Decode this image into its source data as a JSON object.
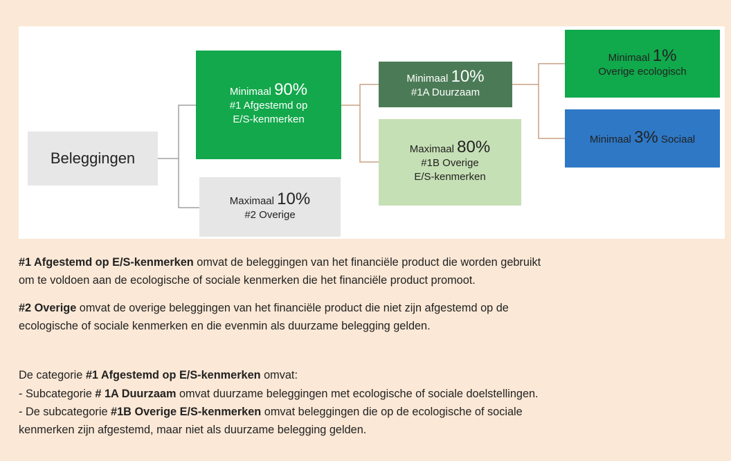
{
  "nodes": [
    {
      "label": "Beleggingen"
    },
    {
      "prefix": "Minimaal",
      "value": "90%",
      "lines": [
        "#1 Afgestemd op",
        "E/S-kenmerken"
      ]
    },
    {
      "prefix": "Maximaal",
      "value": "10%",
      "lines": [
        "#2 Overige"
      ]
    },
    {
      "prefix": "Minimaal",
      "value": "10%",
      "lines": [
        "#1A Duurzaam"
      ]
    },
    {
      "prefix": "Maximaal",
      "value": "80%",
      "lines": [
        "#1B Overige",
        "E/S-kenmerken"
      ]
    },
    {
      "prefix": "Minimaal",
      "value": "1%",
      "lines": [
        "Overige ecologisch"
      ]
    },
    {
      "prefix": "Minimaal",
      "value": "3%",
      "suffix": "Sociaal"
    }
  ],
  "paragraphs": [
    [
      [
        {
          "b": "#1 Afgestemd op E/S-kenmerken"
        },
        {
          "t": " omvat de beleggingen van het financiële product die worden gebruikt"
        }
      ],
      [
        {
          "t": "om te voldoen aan de ecologische of sociale kenmerken die het financiële product promoot."
        }
      ]
    ],
    [
      [
        {
          "b": "#2 Overige"
        },
        {
          "t": " omvat de overige beleggingen van het financiële product die niet zijn afgestemd op de"
        }
      ],
      [
        {
          "t": "ecologische of sociale kenmerken en die evenmin als duurzame belegging gelden."
        }
      ]
    ],
    [
      [
        {
          "t": "De categorie "
        },
        {
          "b": "#1 Afgestemd op E/S-kenmerken"
        },
        {
          "t": " omvat:"
        }
      ],
      [
        {
          "t": "- Subcategorie "
        },
        {
          "b": "# 1A Duurzaam"
        },
        {
          "t": " omvat duurzame beleggingen met ecologische of sociale doelstellingen."
        }
      ],
      [
        {
          "t": "- De subcategorie "
        },
        {
          "b": "#1B Overige E/S-kenmerken"
        },
        {
          "t": " omvat beleggingen die op de ecologische of sociale"
        }
      ],
      [
        {
          "t": "kenmerken zijn afgestemd, maar niet als duurzame belegging gelden."
        }
      ]
    ]
  ]
}
